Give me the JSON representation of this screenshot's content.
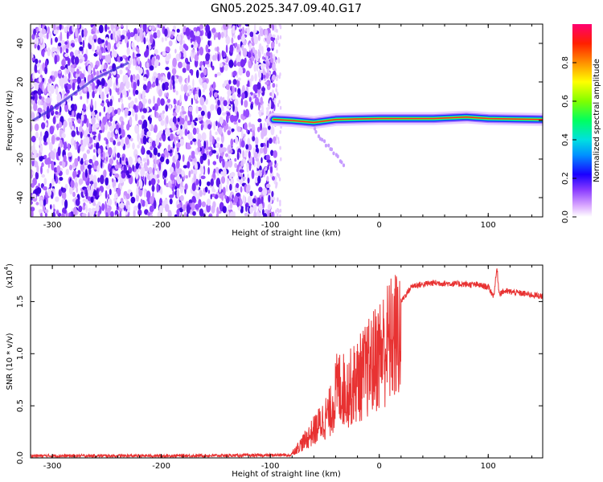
{
  "figure_title": "GN05.2025.347.09.40.G17",
  "chart_data": [
    {
      "type": "heatmap",
      "title": "",
      "xlabel": "Height of straight line (km)",
      "ylabel": "Frequency (Hz)",
      "xlim": [
        -320,
        150
      ],
      "ylim": [
        -50,
        50
      ],
      "xticks": [
        -300,
        -200,
        -100,
        0,
        100
      ],
      "yticks": [
        -40,
        -20,
        0,
        20,
        40
      ],
      "colorbar": {
        "label": "Normalized spectral amplitude",
        "range": [
          0,
          1
        ],
        "ticks": [
          0.0,
          0.2,
          0.4,
          0.6,
          0.8
        ],
        "colors": [
          "#ffffff",
          "#d28cff",
          "#7b2cff",
          "#0000ff",
          "#00c8ff",
          "#00ff80",
          "#80ff00",
          "#ffff00",
          "#ff8000",
          "#ff0000",
          "#ff0080"
        ]
      },
      "noise_region_x": [
        -320,
        -95
      ],
      "carrier_line": [
        {
          "x": -97,
          "y": 0.5
        },
        {
          "x": -80,
          "y": 0
        },
        {
          "x": -60,
          "y": -1
        },
        {
          "x": -40,
          "y": 0.5
        },
        {
          "x": -20,
          "y": 0.8
        },
        {
          "x": 0,
          "y": 1
        },
        {
          "x": 50,
          "y": 1
        },
        {
          "x": 80,
          "y": 1.8
        },
        {
          "x": 100,
          "y": 1
        },
        {
          "x": 150,
          "y": 0.5
        }
      ],
      "noise_streak": [
        {
          "x": -318,
          "y": 0
        },
        {
          "x": -300,
          "y": 6
        },
        {
          "x": -260,
          "y": 22
        },
        {
          "x": -230,
          "y": 30
        }
      ]
    },
    {
      "type": "line",
      "title": "",
      "xlabel": "Height of straight line (km)",
      "ylabel": "SNR (10 * v/v)",
      "ymultiplier": "(x10",
      "ymultiplier_exp": "4",
      "ymultiplier_close": ")",
      "xlim": [
        -320,
        150
      ],
      "ylim": [
        0,
        18500
      ],
      "xticks": [
        -300,
        -200,
        -100,
        0,
        100
      ],
      "yticks": [
        0,
        5000,
        10000,
        15000
      ],
      "ytick_labels": [
        "0.0",
        "0.5",
        "1.0",
        "1.5"
      ],
      "color": "#e83232",
      "series": [
        {
          "values_x": [
            -320,
            -200,
            -100,
            -82,
            -75,
            -65,
            -55,
            -45,
            -38,
            -30,
            -22,
            -15,
            -8,
            0,
            10,
            20,
            30,
            50,
            70,
            90,
            100,
            105,
            108,
            110,
            115,
            130,
            150
          ],
          "values_y": [
            200,
            200,
            250,
            300,
            1200,
            2500,
            4000,
            5500,
            8500,
            8000,
            9000,
            10000,
            11000,
            12500,
            14000,
            15000,
            16500,
            16800,
            16700,
            16600,
            16400,
            15500,
            18200,
            15800,
            16000,
            15800,
            15500
          ]
        }
      ]
    }
  ]
}
